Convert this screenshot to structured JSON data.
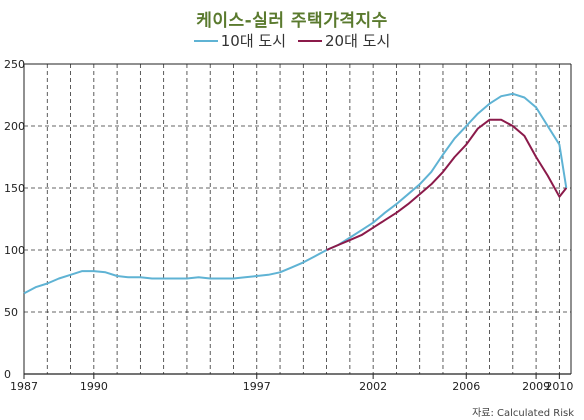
{
  "chart_data": {
    "type": "line",
    "title": "케이스-실러 주택가격지수",
    "source": "자료: Calculated Risk",
    "ylim": [
      0,
      250
    ],
    "xlim": [
      1987,
      2010.5
    ],
    "yticks": [
      0,
      50,
      100,
      150,
      200,
      250
    ],
    "xticks": [
      1987,
      1990,
      1997,
      2002,
      2006,
      2009,
      2010
    ],
    "grid": true,
    "legend_position": "top-center",
    "series": [
      {
        "name": "10대 도시",
        "color": "#5fb3d4",
        "x": [
          1987.0,
          1987.5,
          1988.0,
          1988.5,
          1989.0,
          1989.5,
          1990.0,
          1990.5,
          1991.0,
          1991.5,
          1992.0,
          1992.5,
          1993.0,
          1993.5,
          1994.0,
          1994.5,
          1995.0,
          1995.5,
          1996.0,
          1996.5,
          1997.0,
          1997.5,
          1998.0,
          1998.5,
          1999.0,
          1999.5,
          2000.0,
          2000.5,
          2001.0,
          2001.5,
          2002.0,
          2002.5,
          2003.0,
          2003.5,
          2004.0,
          2004.5,
          2005.0,
          2005.5,
          2006.0,
          2006.5,
          2007.0,
          2007.5,
          2008.0,
          2008.5,
          2009.0,
          2009.5,
          2010.0,
          2010.3
        ],
        "values": [
          65,
          70,
          73,
          77,
          80,
          83,
          83,
          82,
          79,
          78,
          78,
          77,
          77,
          77,
          77,
          78,
          77,
          77,
          77,
          78,
          79,
          80,
          82,
          86,
          90,
          95,
          100,
          104,
          110,
          116,
          122,
          130,
          137,
          145,
          153,
          163,
          177,
          190,
          200,
          210,
          218,
          224,
          226,
          223,
          215,
          200,
          185,
          150
        ]
      },
      {
        "name": "20대 도시",
        "color": "#8b1a4a",
        "x": [
          2000.0,
          2000.5,
          2001.0,
          2001.5,
          2002.0,
          2002.5,
          2003.0,
          2003.5,
          2004.0,
          2004.5,
          2005.0,
          2005.5,
          2006.0,
          2006.5,
          2007.0,
          2007.5,
          2008.0,
          2008.5,
          2009.0,
          2009.5,
          2010.0,
          2010.3
        ],
        "values": [
          100,
          104,
          108,
          112,
          118,
          124,
          130,
          137,
          145,
          153,
          163,
          175,
          185,
          198,
          205,
          205,
          200,
          192,
          175,
          160,
          143,
          150
        ]
      }
    ]
  }
}
